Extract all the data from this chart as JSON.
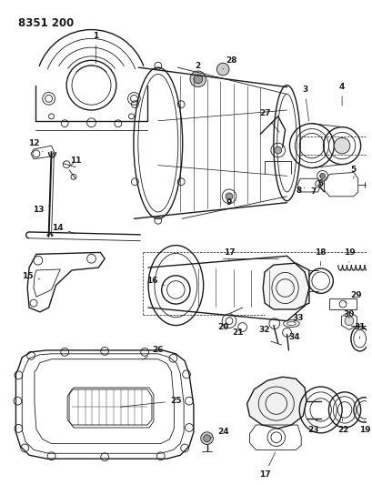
{
  "title": "8351 200",
  "bg_color": "#ffffff",
  "line_color": "#1a1a1a",
  "title_fontsize": 8.5,
  "label_fontsize": 6.5,
  "fig_width": 4.1,
  "fig_height": 5.33,
  "dpi": 100
}
